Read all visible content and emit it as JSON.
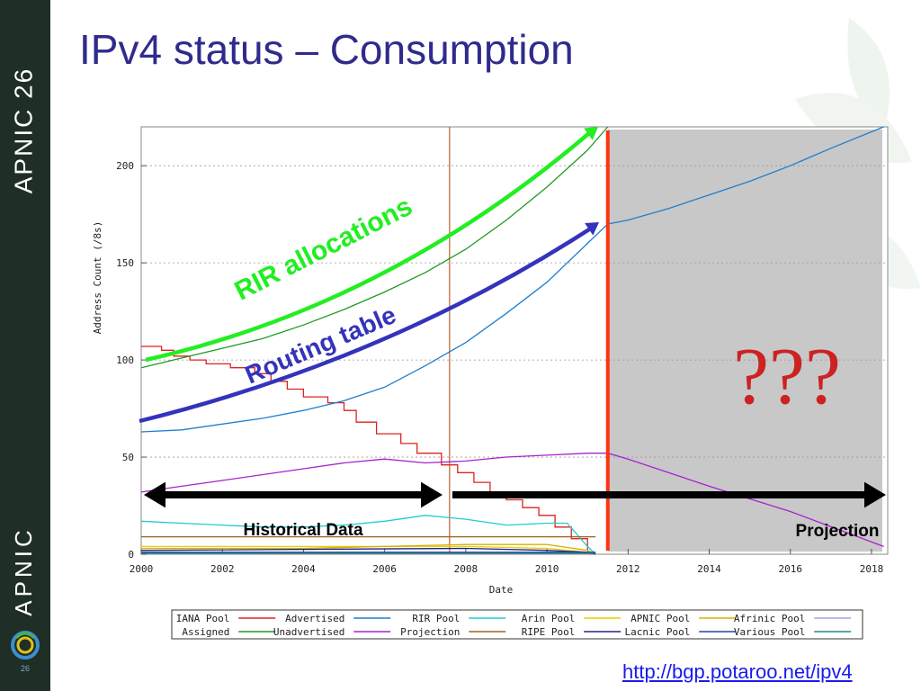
{
  "slide": {
    "title": "IPv4 status – Consumption",
    "url": "http://bgp.potaroo.net/ipv4",
    "sidebar_top_text": "APNIC 26",
    "sidebar_bottom_text": "APNIC",
    "slide_number": "26",
    "sidebar_color": "#1f2f26",
    "title_color": "#2f2b8c"
  },
  "chart_data": {
    "type": "line",
    "xlabel": "Date",
    "ylabel": "Address Count (/8s)",
    "xlim": [
      2000,
      2018.4
    ],
    "ylim": [
      0,
      220
    ],
    "x_ticks": [
      "2000",
      "2002",
      "2004",
      "2006",
      "2008",
      "2010",
      "2012",
      "2014",
      "2016",
      "2018"
    ],
    "y_ticks": [
      "0",
      "50",
      "100",
      "150",
      "200"
    ],
    "grid": true,
    "historical_marker_x": 2007.6,
    "projection_start_x": 2011.5,
    "projection_region_color": "#c8c8c8",
    "series": [
      {
        "name": "IANA Pool",
        "color": "#dd2222",
        "style": "step",
        "points": [
          [
            2000,
            107
          ],
          [
            2000.5,
            107
          ],
          [
            2000.5,
            105
          ],
          [
            2000.8,
            105
          ],
          [
            2000.8,
            102
          ],
          [
            2001.2,
            102
          ],
          [
            2001.2,
            100
          ],
          [
            2001.6,
            100
          ],
          [
            2001.6,
            98
          ],
          [
            2002.2,
            98
          ],
          [
            2002.2,
            96
          ],
          [
            2002.8,
            96
          ],
          [
            2002.8,
            93
          ],
          [
            2003.2,
            93
          ],
          [
            2003.2,
            89
          ],
          [
            2003.6,
            89
          ],
          [
            2003.6,
            85
          ],
          [
            2004,
            85
          ],
          [
            2004,
            81
          ],
          [
            2004.6,
            81
          ],
          [
            2004.6,
            78
          ],
          [
            2005,
            78
          ],
          [
            2005,
            74
          ],
          [
            2005.3,
            74
          ],
          [
            2005.3,
            68
          ],
          [
            2005.8,
            68
          ],
          [
            2005.8,
            62
          ],
          [
            2006.4,
            62
          ],
          [
            2006.4,
            57
          ],
          [
            2006.8,
            57
          ],
          [
            2006.8,
            52
          ],
          [
            2007.4,
            52
          ],
          [
            2007.4,
            46
          ],
          [
            2007.8,
            46
          ],
          [
            2007.8,
            42
          ],
          [
            2008.2,
            42
          ],
          [
            2008.2,
            37
          ],
          [
            2008.6,
            37
          ],
          [
            2008.6,
            32
          ],
          [
            2009,
            32
          ],
          [
            2009,
            28
          ],
          [
            2009.4,
            28
          ],
          [
            2009.4,
            24
          ],
          [
            2009.8,
            24
          ],
          [
            2009.8,
            20
          ],
          [
            2010.2,
            20
          ],
          [
            2010.2,
            14
          ],
          [
            2010.6,
            14
          ],
          [
            2010.6,
            8
          ],
          [
            2011,
            8
          ],
          [
            2011,
            2
          ],
          [
            2011.1,
            0
          ]
        ]
      },
      {
        "name": "Advertised",
        "color": "#1e7fcf",
        "points": [
          [
            2000,
            63
          ],
          [
            2001,
            64
          ],
          [
            2002,
            67
          ],
          [
            2003,
            70
          ],
          [
            2004,
            74
          ],
          [
            2005,
            79
          ],
          [
            2006,
            86
          ],
          [
            2007,
            97
          ],
          [
            2008,
            109
          ],
          [
            2009,
            124
          ],
          [
            2010,
            140
          ],
          [
            2011,
            160
          ],
          [
            2011.5,
            170
          ],
          [
            2012,
            172
          ],
          [
            2013,
            178
          ],
          [
            2014,
            185
          ],
          [
            2015,
            192
          ],
          [
            2016,
            200
          ],
          [
            2017,
            209
          ],
          [
            2018.3,
            220
          ]
        ]
      },
      {
        "name": "RIR Pool",
        "color": "#22cccc",
        "points": [
          [
            2000,
            17
          ],
          [
            2001,
            16
          ],
          [
            2002,
            15
          ],
          [
            2003,
            14
          ],
          [
            2004,
            14
          ],
          [
            2005,
            15
          ],
          [
            2006,
            17
          ],
          [
            2007,
            20
          ],
          [
            2008,
            18
          ],
          [
            2009,
            15
          ],
          [
            2010,
            16
          ],
          [
            2010.5,
            16
          ],
          [
            2011,
            4
          ],
          [
            2011.2,
            0
          ]
        ]
      },
      {
        "name": "Arin Pool",
        "color": "#e8d000",
        "points": [
          [
            2000,
            4
          ],
          [
            2004,
            4
          ],
          [
            2008,
            4
          ],
          [
            2010,
            3
          ],
          [
            2011,
            1
          ],
          [
            2011.2,
            0
          ]
        ]
      },
      {
        "name": "APNIC Pool",
        "color": "#d8b000",
        "points": [
          [
            2000,
            3
          ],
          [
            2004,
            3
          ],
          [
            2008,
            5
          ],
          [
            2010,
            5
          ],
          [
            2011,
            2
          ],
          [
            2011.2,
            0
          ]
        ]
      },
      {
        "name": "Afrinic Pool",
        "color": "#a8a0ee",
        "points": [
          [
            2000,
            1
          ],
          [
            2011.2,
            1
          ]
        ]
      },
      {
        "name": "Assigned",
        "color": "#229922",
        "points": [
          [
            2000,
            96
          ],
          [
            2001,
            101
          ],
          [
            2002,
            106
          ],
          [
            2003,
            111
          ],
          [
            2004,
            118
          ],
          [
            2005,
            126
          ],
          [
            2006,
            135
          ],
          [
            2007,
            145
          ],
          [
            2008,
            157
          ],
          [
            2009,
            172
          ],
          [
            2010,
            189
          ],
          [
            2011,
            208
          ],
          [
            2011.5,
            220
          ]
        ]
      },
      {
        "name": "Unadvertised",
        "color": "#aa22cc",
        "points": [
          [
            2000,
            32
          ],
          [
            2001,
            35
          ],
          [
            2002,
            38
          ],
          [
            2003,
            41
          ],
          [
            2004,
            44
          ],
          [
            2005,
            47
          ],
          [
            2006,
            49
          ],
          [
            2007,
            47
          ],
          [
            2008,
            48
          ],
          [
            2009,
            50
          ],
          [
            2010,
            51
          ],
          [
            2011,
            52
          ],
          [
            2011.5,
            52
          ],
          [
            2012,
            49
          ],
          [
            2014,
            35
          ],
          [
            2016,
            22
          ],
          [
            2018.3,
            4
          ]
        ]
      },
      {
        "name": "Projection",
        "color": "#a06020",
        "points": [
          [
            2000,
            9
          ],
          [
            2011.2,
            9
          ]
        ]
      },
      {
        "name": "RIPE Pool",
        "color": "#222288",
        "points": [
          [
            2000,
            2
          ],
          [
            2008,
            3
          ],
          [
            2010,
            2
          ],
          [
            2011,
            1
          ],
          [
            2011.2,
            0
          ]
        ]
      },
      {
        "name": "Lacnic Pool",
        "color": "#2244aa",
        "points": [
          [
            2000,
            1
          ],
          [
            2011.2,
            1
          ]
        ]
      },
      {
        "name": "Various Pool",
        "color": "#228888",
        "points": [
          [
            2000,
            0.5
          ],
          [
            2011.2,
            0.5
          ]
        ]
      }
    ],
    "legend_items": [
      {
        "name": "IANA Pool",
        "color": "#dd2222"
      },
      {
        "name": "Advertised",
        "color": "#1e7fcf"
      },
      {
        "name": "RIR Pool",
        "color": "#22cccc"
      },
      {
        "name": "Arin Pool",
        "color": "#e8d000"
      },
      {
        "name": "APNIC Pool",
        "color": "#d8b000"
      },
      {
        "name": "Afrinic Pool",
        "color": "#a8a0ee"
      },
      {
        "name": "Assigned",
        "color": "#229922"
      },
      {
        "name": "Unadvertised",
        "color": "#aa22cc"
      },
      {
        "name": "Projection",
        "color": "#a06020"
      },
      {
        "name": "RIPE Pool",
        "color": "#222288"
      },
      {
        "name": "Lacnic Pool",
        "color": "#2244aa"
      },
      {
        "name": "Various Pool",
        "color": "#228888"
      }
    ],
    "annotations": {
      "rir_allocations": {
        "text": "RIR allocations",
        "color": "#22ee22"
      },
      "routing_table": {
        "text": "Routing table",
        "color": "#3333bb"
      },
      "unknown": {
        "text": "???",
        "color": "#cc2222"
      },
      "historical": {
        "text": "Historical Data"
      },
      "projection": {
        "text": "Projection"
      }
    }
  }
}
